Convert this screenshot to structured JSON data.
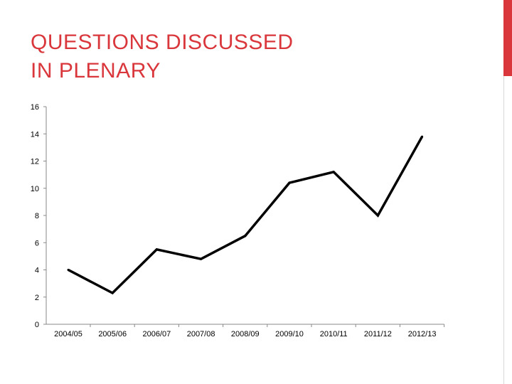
{
  "slide": {
    "title_line1": "QUESTIONS DISCUSSED",
    "title_line2": "IN PLENARY",
    "accent_color": "#d9373c"
  },
  "chart_data": {
    "type": "line",
    "title": "QUESTIONS DISCUSSED IN PLENARY",
    "xlabel": "",
    "ylabel": "",
    "categories": [
      "2004/05",
      "2005/06",
      "2006/07",
      "2007/08",
      "2008/09",
      "2009/10",
      "2010/11",
      "2011/12",
      "2012/13"
    ],
    "series": [
      {
        "values": [
          4.0,
          2.3,
          5.5,
          4.8,
          6.5,
          10.4,
          11.2,
          8.0,
          13.8
        ],
        "color": "#000000"
      }
    ],
    "ylim": [
      0,
      16
    ],
    "yticks": [
      0,
      2,
      4,
      6,
      8,
      10,
      12,
      14,
      16
    ],
    "grid": false,
    "legend": "none"
  }
}
